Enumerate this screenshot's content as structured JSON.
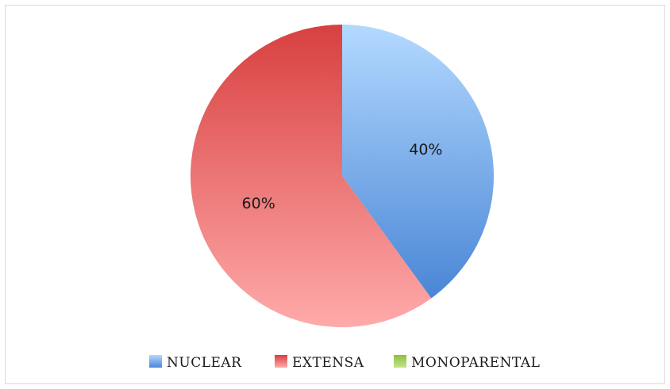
{
  "chart_data": {
    "type": "pie",
    "slices": [
      {
        "label": "NUCLEAR",
        "value": 40,
        "display": "40%",
        "color": "#5b9bd5",
        "color_light": "#b3d9ff",
        "color_dark": "#4a86d6"
      },
      {
        "label": "EXTENSA",
        "value": 60,
        "display": "60%",
        "color": "#e06060",
        "color_light": "#ffaaaa",
        "color_dark": "#d84040"
      },
      {
        "label": "MONOPARENTAL",
        "value": 0,
        "display": "",
        "color": "#9bcb4a",
        "color_light": "#c6e48e",
        "color_dark": "#8dbf3c"
      }
    ],
    "legend_position": "bottom"
  }
}
